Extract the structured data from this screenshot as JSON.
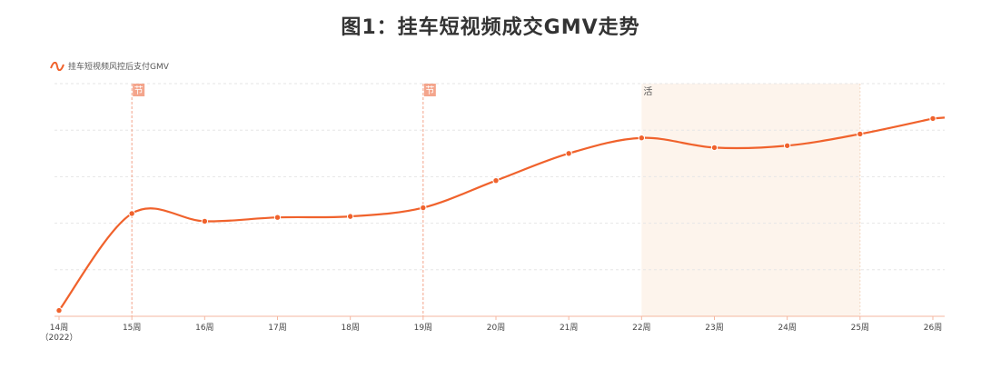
{
  "title": "图1：挂车短视频成交GMV走势",
  "legend": {
    "label": "挂车短视频风控后支付GMV",
    "color": "#F0622C"
  },
  "colors": {
    "line": "#F0622C",
    "marker_badge": "#F4A58C",
    "highlight_band": "#FDF4EC",
    "grid": "#E6E6E6",
    "vline": "#F3A38A"
  },
  "chart_data": {
    "type": "line",
    "categories": [
      "14周",
      "15周",
      "16周",
      "17周",
      "18周",
      "19周",
      "20周",
      "21周",
      "22周",
      "23周",
      "24周",
      "25周",
      "26周"
    ],
    "year_label": "（2022）",
    "series": [
      {
        "name": "挂车短视频风控后支付GMV",
        "values": [
          3,
          53,
          49,
          51,
          51.5,
          56,
          70,
          84,
          92,
          87,
          88,
          94,
          102
        ]
      }
    ],
    "ylim": [
      0,
      120
    ],
    "grid": true,
    "y_axis_labels": false,
    "markers": [
      {
        "category": "15周",
        "label": "节",
        "style": "line"
      },
      {
        "category": "19周",
        "label": "节",
        "style": "line"
      },
      {
        "category": "22周",
        "label": "活",
        "style": "band",
        "end_category": "25周"
      }
    ]
  }
}
